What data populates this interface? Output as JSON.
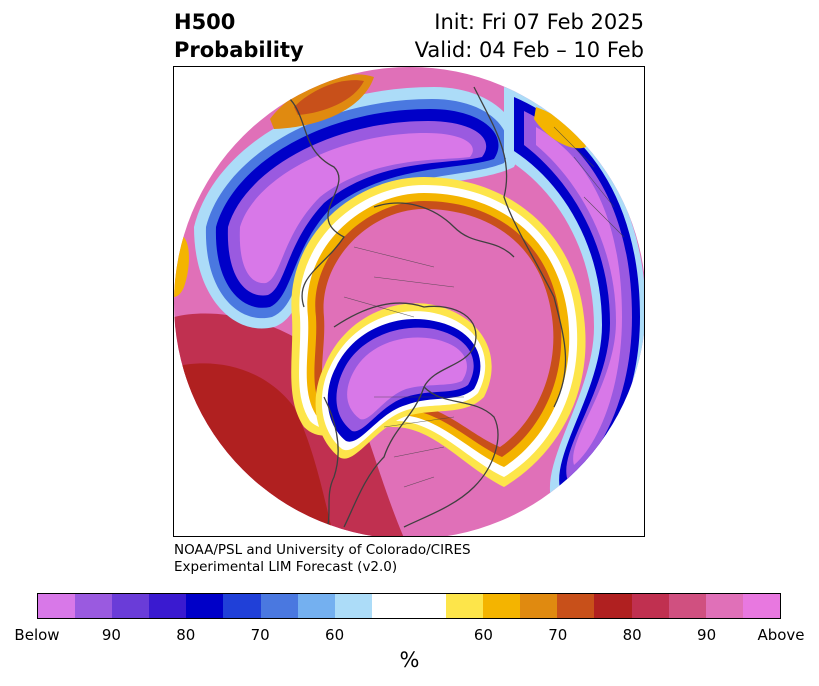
{
  "title": {
    "left_line1": "H500",
    "left_line2": "Probability",
    "right_line1": "Init: Fri 07 Feb 2025",
    "right_line2": "Valid: 04 Feb – 10 Feb"
  },
  "credit": {
    "line1": "NOAA/PSL and University of Colorado/CIRES",
    "line2": "Experimental LIM Forecast (v2.0)"
  },
  "colorbar": {
    "colors": [
      "#d878e8",
      "#9a5ae0",
      "#6a3cd8",
      "#3a1ad0",
      "#0000c8",
      "#2040d8",
      "#4a78e0",
      "#74b0f0",
      "#acdcf8",
      "#ffffff",
      "#ffffff",
      "#fde54a",
      "#f4b400",
      "#e08a10",
      "#c8501a",
      "#b02020",
      "#c03050",
      "#d05080",
      "#e070b8",
      "#e878e0"
    ],
    "tick_labels": [
      "Below",
      "90",
      "80",
      "70",
      "60",
      "60",
      "70",
      "80",
      "90",
      "Above"
    ],
    "unit": "%"
  },
  "map": {
    "projection": "north-polar stereographic",
    "field": "500 hPa height probability",
    "palette": {
      "below_strong": "#d878e8",
      "below_mid": "#9a5ae0",
      "below_edge": "#0000c8",
      "below_light": "#acdcf8",
      "neutral": "#ffffff",
      "above_light": "#fde54a",
      "above_mid": "#f4b400",
      "above_orange": "#c8501a",
      "above_red": "#b02020",
      "above_strong": "#e070b8",
      "coastline": "#404040"
    }
  }
}
